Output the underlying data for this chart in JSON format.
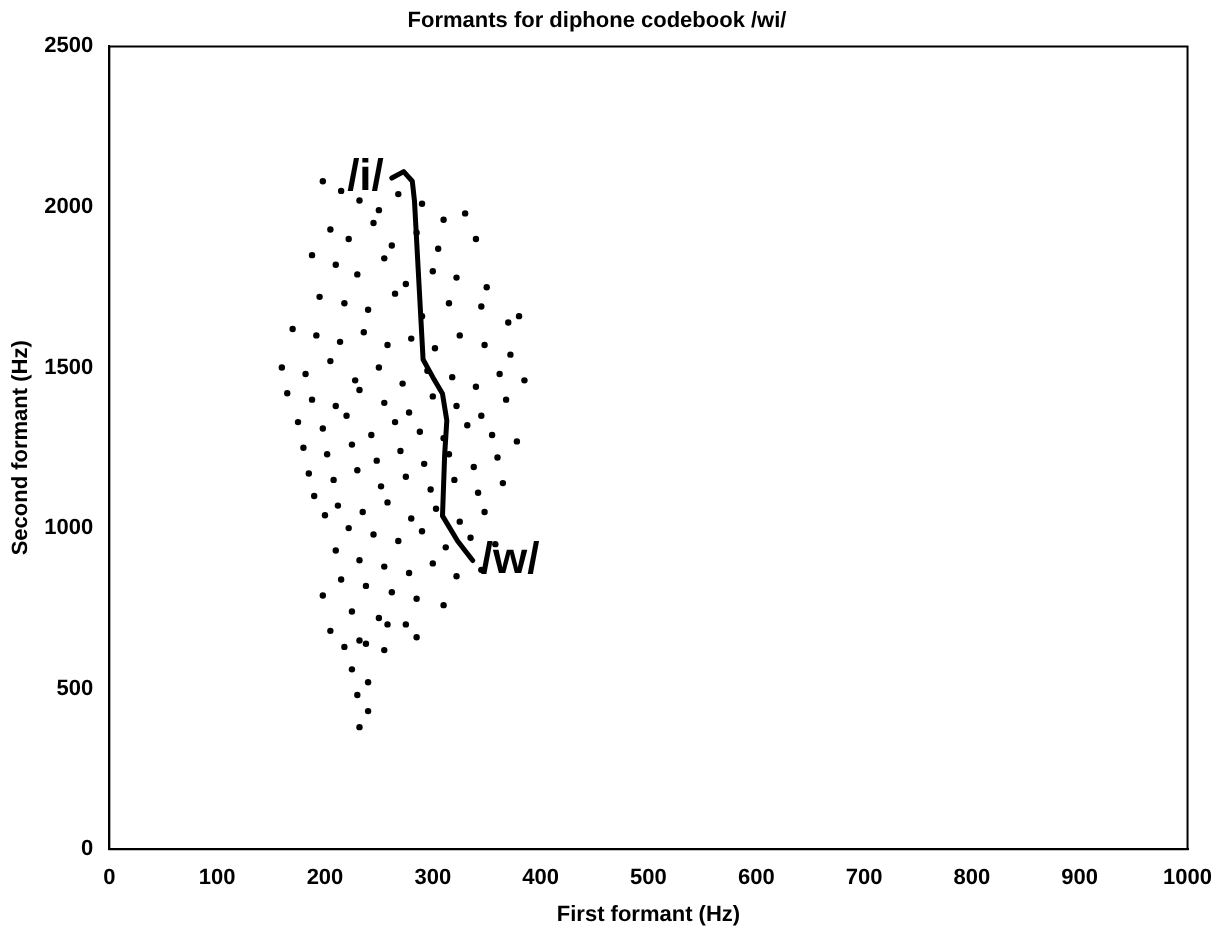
{
  "chart_data": {
    "type": "scatter",
    "title": "Formants for diphone codebook /wi/",
    "xlabel": "First formant (Hz)",
    "ylabel": "Second formant (Hz)",
    "xlim": [
      0,
      1000
    ],
    "ylim": [
      0,
      2500
    ],
    "xticks": [
      0,
      100,
      200,
      300,
      400,
      500,
      600,
      700,
      800,
      900,
      1000
    ],
    "yticks": [
      0,
      500,
      1000,
      1500,
      2000,
      2500
    ],
    "grid": false,
    "legend": false,
    "series": [
      {
        "color": "#000000",
        "marker": "circle",
        "x": [
          198,
          215,
          232,
          250,
          268,
          290,
          310,
          330,
          205,
          222,
          245,
          262,
          285,
          305,
          340,
          370,
          188,
          210,
          230,
          255,
          275,
          300,
          322,
          350,
          195,
          218,
          240,
          265,
          290,
          315,
          345,
          380,
          170,
          192,
          214,
          236,
          258,
          280,
          302,
          325,
          348,
          372,
          160,
          182,
          205,
          228,
          250,
          272,
          295,
          318,
          340,
          362,
          385,
          165,
          188,
          210,
          232,
          255,
          278,
          300,
          322,
          345,
          368,
          175,
          198,
          220,
          243,
          265,
          288,
          310,
          332,
          355,
          378,
          180,
          202,
          225,
          248,
          270,
          292,
          315,
          338,
          360,
          185,
          208,
          230,
          252,
          275,
          298,
          320,
          342,
          365,
          190,
          212,
          235,
          258,
          280,
          303,
          325,
          348,
          200,
          222,
          245,
          268,
          290,
          312,
          335,
          358,
          210,
          232,
          255,
          278,
          300,
          322,
          345,
          215,
          238,
          262,
          285,
          310,
          198,
          225,
          250,
          275,
          205,
          232,
          258,
          285,
          218,
          238,
          255,
          225,
          240,
          230,
          240,
          232
        ],
        "values": [
          2080,
          2050,
          2020,
          1990,
          2040,
          2010,
          1960,
          1980,
          1930,
          1900,
          1950,
          1880,
          1920,
          1870,
          1900,
          1640,
          1850,
          1820,
          1790,
          1840,
          1760,
          1800,
          1780,
          1750,
          1720,
          1700,
          1680,
          1730,
          1660,
          1700,
          1690,
          1660,
          1620,
          1600,
          1580,
          1610,
          1570,
          1590,
          1560,
          1600,
          1570,
          1540,
          1500,
          1480,
          1520,
          1460,
          1500,
          1450,
          1490,
          1470,
          1440,
          1480,
          1460,
          1420,
          1400,
          1380,
          1430,
          1390,
          1360,
          1410,
          1380,
          1350,
          1400,
          1330,
          1310,
          1350,
          1290,
          1330,
          1300,
          1280,
          1320,
          1290,
          1270,
          1250,
          1230,
          1260,
          1210,
          1240,
          1200,
          1230,
          1190,
          1220,
          1170,
          1150,
          1180,
          1130,
          1160,
          1120,
          1150,
          1110,
          1140,
          1100,
          1070,
          1050,
          1080,
          1030,
          1060,
          1020,
          1050,
          1040,
          1000,
          980,
          960,
          990,
          940,
          970,
          950,
          930,
          900,
          880,
          860,
          890,
          850,
          870,
          840,
          820,
          800,
          780,
          760,
          790,
          740,
          720,
          700,
          680,
          650,
          700,
          660,
          630,
          640,
          620,
          560,
          520,
          480,
          430,
          380
        ]
      },
      {
        "type": "line",
        "color": "#000000",
        "marker": "none",
        "x": [
          262,
          273,
          281,
          283,
          291,
          300,
          309,
          313,
          311,
          309,
          323,
          337
        ],
        "values": [
          2090,
          2110,
          2080,
          2019,
          1525,
          1470,
          1418,
          1335,
          1228,
          1038,
          960,
          899
        ]
      }
    ],
    "annotations": [
      {
        "text": "/i/",
        "x": 262,
        "y": 2090
      },
      {
        "text": "/w/",
        "x": 337,
        "y": 899
      }
    ]
  }
}
